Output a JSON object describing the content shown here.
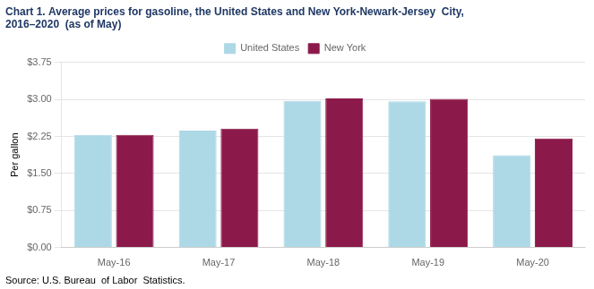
{
  "chart_data": {
    "type": "bar",
    "title": [
      "Chart 1. Average prices for gasoline, the United States and New York-Newark-Jersey  City,",
      "2016–2020  (as of May)"
    ],
    "ylabel": "Per gallon",
    "annotations": [
      "Source: U.S. Bureau  of Labor  Statistics."
    ],
    "categories": [
      "May-16",
      "May-17",
      "May-18",
      "May-19",
      "May-20"
    ],
    "series": [
      {
        "name": "United States",
        "color": "#add8e6",
        "values": [
          2.28,
          2.37,
          2.97,
          2.96,
          1.87
        ]
      },
      {
        "name": "New York",
        "color": "#8b1a4a",
        "values": [
          2.28,
          2.41,
          3.02,
          3.01,
          2.21
        ]
      }
    ],
    "ylim": [
      0,
      3.75
    ],
    "yticks": [
      {
        "value": 0.0,
        "label": "$0.00"
      },
      {
        "value": 0.75,
        "label": "$0.75"
      },
      {
        "value": 1.5,
        "label": "$1.50"
      },
      {
        "value": 2.25,
        "label": "$2.25"
      },
      {
        "value": 3.0,
        "label": "$3.00"
      },
      {
        "value": 3.75,
        "label": "$3.75"
      }
    ],
    "grid": true,
    "legend": "top"
  }
}
